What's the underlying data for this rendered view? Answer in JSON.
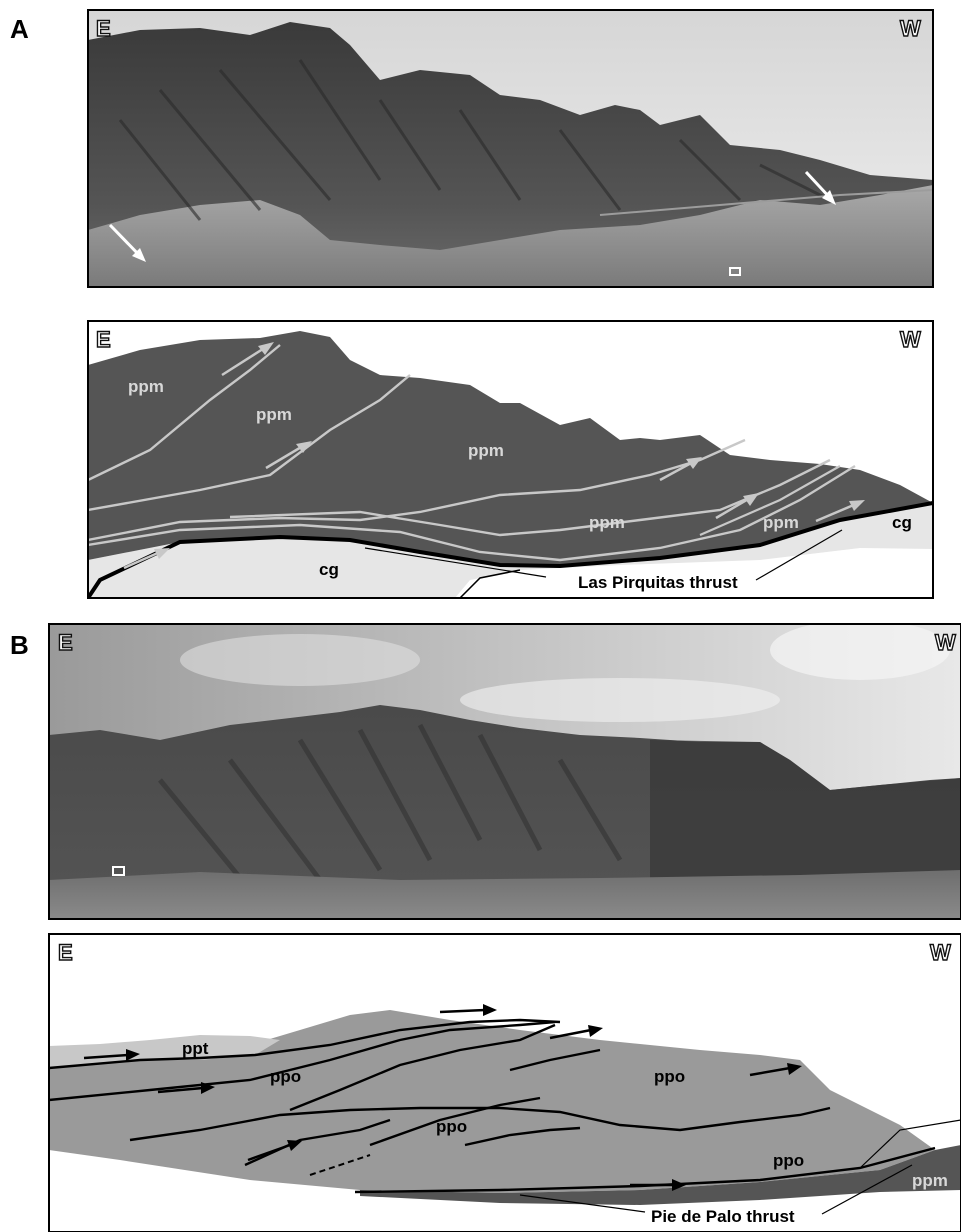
{
  "panels": [
    {
      "letter": "A",
      "photo": {
        "orient_left": "E",
        "orient_right": "W"
      },
      "sketch": {
        "orient_left": "E",
        "orient_right": "W",
        "units": [
          "ppm",
          "ppm",
          "ppm",
          "ppm",
          "ppm",
          "cg",
          "cg"
        ],
        "thrust_label": "Las Pirquitas thrust"
      }
    },
    {
      "letter": "B",
      "photo": {
        "orient_left": "E",
        "orient_right": "W"
      },
      "sketch": {
        "orient_left": "E",
        "orient_right": "W",
        "units": [
          "ppt",
          "ppo",
          "ppo",
          "ppo",
          "ppo",
          "ppm"
        ],
        "thrust_label": "Pie de Palo thrust"
      }
    }
  ],
  "colors": {
    "ppm_fill": "#555555",
    "cg_fill": "#e6e6e6",
    "ppo_fill": "#9a9a9a",
    "ppt_fill": "#c8c8c8",
    "fault_light": "#c8c8c8",
    "fault_dark": "#000000"
  }
}
